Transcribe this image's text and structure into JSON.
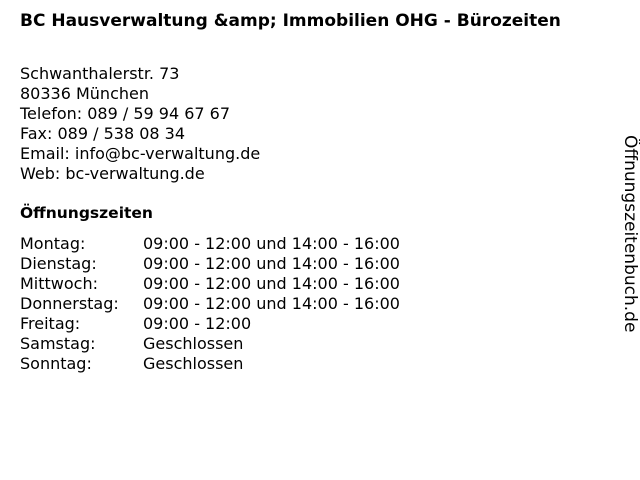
{
  "title": "BC Hausverwaltung &amp; Immobilien OHG - Bürozeiten",
  "address": {
    "street": "Schwanthalerstr. 73",
    "city": "80336 München",
    "phone": "Telefon: 089 / 59 94 67 67",
    "fax": "Fax: 089 / 538 08 34",
    "email": "Email: info@bc-verwaltung.de",
    "web": "Web: bc-verwaltung.de"
  },
  "hours_heading": "Öffnungszeiten",
  "hours": [
    {
      "day": "Montag:",
      "time": "09:00 - 12:00 und 14:00 - 16:00"
    },
    {
      "day": "Dienstag:",
      "time": "09:00 - 12:00 und 14:00 - 16:00"
    },
    {
      "day": "Mittwoch:",
      "time": "09:00 - 12:00 und 14:00 - 16:00"
    },
    {
      "day": "Donnerstag:",
      "time": "09:00 - 12:00 und 14:00 - 16:00"
    },
    {
      "day": "Freitag:",
      "time": "09:00 - 12:00"
    },
    {
      "day": "Samstag:",
      "time": "Geschlossen"
    },
    {
      "day": "Sonntag:",
      "time": "Geschlossen"
    }
  ],
  "side_brand": "Öffnungszeitenbuch.de"
}
